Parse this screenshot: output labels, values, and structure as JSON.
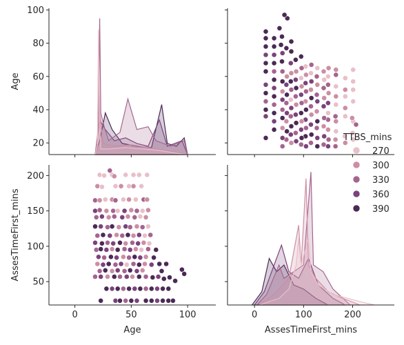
{
  "chart_data": {
    "type": "scatter",
    "kind": "pairplot",
    "variables": [
      "Age",
      "AssesTimeFirst_mins"
    ],
    "hue": {
      "name": "TTBS_mins",
      "levels": [
        "270",
        "300",
        "330",
        "360",
        "390"
      ],
      "colors": [
        "#e8c0c8",
        "#cc8ea4",
        "#a5648f",
        "#7a437b",
        "#4a2a55"
      ]
    },
    "axes": {
      "Age": {
        "ticks": [
          0,
          50,
          100
        ],
        "lim": [
          -23,
          125
        ],
        "label": "Age"
      },
      "Age_row": {
        "ticks": [
          20,
          40,
          60,
          80,
          100
        ],
        "lim": [
          13,
          101
        ],
        "label": "Age"
      },
      "AssesTimeFirst_mins": {
        "ticks": [
          50,
          100,
          150,
          200
        ],
        "lim": [
          17,
          215
        ],
        "label": "AssesTimeFirst_mins"
      },
      "AssesTimeFirst_mins_col": {
        "ticks": [
          0,
          100,
          200
        ],
        "lim": [
          -55,
          285
        ],
        "label": "AssesTimeFirst_mins"
      }
    },
    "kde_age": {
      "270": [
        [
          18,
          0
        ],
        [
          20,
          0.06
        ],
        [
          21,
          0.9
        ],
        [
          22,
          0.2
        ],
        [
          23,
          0.04
        ],
        [
          30,
          0.04
        ],
        [
          45,
          0.05
        ],
        [
          60,
          0.04
        ],
        [
          75,
          0.03
        ],
        [
          90,
          0.01
        ],
        [
          100,
          0
        ]
      ],
      "300": [
        [
          18,
          0
        ],
        [
          20,
          0.1
        ],
        [
          21,
          0.62
        ],
        [
          22,
          0.3
        ],
        [
          25,
          0.08
        ],
        [
          35,
          0.06
        ],
        [
          50,
          0.07
        ],
        [
          65,
          0.05
        ],
        [
          80,
          0.03
        ],
        [
          95,
          0.01
        ],
        [
          100,
          0
        ]
      ],
      "330": [
        [
          18,
          0
        ],
        [
          21,
          0.2
        ],
        [
          22,
          0.98
        ],
        [
          23,
          0.3
        ],
        [
          26,
          0.2
        ],
        [
          30,
          0.1
        ],
        [
          40,
          0.16
        ],
        [
          47,
          0.4
        ],
        [
          55,
          0.18
        ],
        [
          65,
          0.2
        ],
        [
          72,
          0.1
        ],
        [
          85,
          0.06
        ],
        [
          97,
          0.1
        ],
        [
          100,
          0
        ]
      ],
      "360": [
        [
          18,
          0
        ],
        [
          22,
          0.25
        ],
        [
          27,
          0.18
        ],
        [
          35,
          0.1
        ],
        [
          45,
          0.12
        ],
        [
          55,
          0.08
        ],
        [
          65,
          0.06
        ],
        [
          75,
          0.25
        ],
        [
          82,
          0.06
        ],
        [
          95,
          0.1
        ],
        [
          100,
          0
        ]
      ],
      "390": [
        [
          18,
          0
        ],
        [
          22,
          0.1
        ],
        [
          27,
          0.3
        ],
        [
          33,
          0.18
        ],
        [
          42,
          0.08
        ],
        [
          55,
          0.06
        ],
        [
          68,
          0.05
        ],
        [
          77,
          0.36
        ],
        [
          82,
          0.08
        ],
        [
          90,
          0.06
        ],
        [
          97,
          0.12
        ],
        [
          100,
          0
        ]
      ]
    },
    "kde_asses": {
      "270": [
        [
          10,
          0
        ],
        [
          50,
          0.05
        ],
        [
          70,
          0.12
        ],
        [
          85,
          0.3
        ],
        [
          90,
          0.5
        ],
        [
          95,
          0.3
        ],
        [
          110,
          0.5
        ],
        [
          115,
          0.25
        ],
        [
          130,
          0.15
        ],
        [
          160,
          0.08
        ],
        [
          190,
          0.05
        ],
        [
          220,
          0.02
        ],
        [
          245,
          0
        ]
      ],
      "300": [
        [
          10,
          0
        ],
        [
          40,
          0.08
        ],
        [
          70,
          0.2
        ],
        [
          90,
          0.6
        ],
        [
          95,
          0.3
        ],
        [
          105,
          0.95
        ],
        [
          110,
          0.3
        ],
        [
          125,
          0.2
        ],
        [
          150,
          0.1
        ],
        [
          180,
          0.05
        ],
        [
          215,
          0
        ]
      ],
      "330": [
        [
          5,
          0
        ],
        [
          25,
          0.08
        ],
        [
          50,
          0.3
        ],
        [
          60,
          0.2
        ],
        [
          80,
          0.25
        ],
        [
          100,
          0.3
        ],
        [
          115,
          1.0
        ],
        [
          120,
          0.3
        ],
        [
          140,
          0.25
        ],
        [
          160,
          0.12
        ],
        [
          195,
          0
        ]
      ],
      "360": [
        [
          0,
          0
        ],
        [
          20,
          0.1
        ],
        [
          40,
          0.3
        ],
        [
          55,
          0.45
        ],
        [
          70,
          0.25
        ],
        [
          90,
          0.2
        ],
        [
          110,
          0.35
        ],
        [
          130,
          0.15
        ],
        [
          160,
          0.05
        ],
        [
          185,
          0
        ]
      ],
      "390": [
        [
          -5,
          0
        ],
        [
          15,
          0.1
        ],
        [
          30,
          0.35
        ],
        [
          45,
          0.25
        ],
        [
          60,
          0.3
        ],
        [
          80,
          0.15
        ],
        [
          100,
          0.12
        ],
        [
          125,
          0.05
        ],
        [
          150,
          0
        ]
      ]
    },
    "points": [
      {
        "age": 22,
        "t": 201,
        "h": 0
      },
      {
        "age": 26,
        "t": 200,
        "h": 0
      },
      {
        "age": 33,
        "t": 201,
        "h": 0
      },
      {
        "age": 45,
        "t": 201,
        "h": 0
      },
      {
        "age": 52,
        "t": 201,
        "h": 0
      },
      {
        "age": 57,
        "t": 201,
        "h": 0
      },
      {
        "age": 64,
        "t": 201,
        "h": 0
      },
      {
        "age": 20,
        "t": 185,
        "h": 1
      },
      {
        "age": 24,
        "t": 184,
        "h": 0
      },
      {
        "age": 36,
        "t": 185,
        "h": 0
      },
      {
        "age": 41,
        "t": 185,
        "h": 1
      },
      {
        "age": 48,
        "t": 185,
        "h": 0
      },
      {
        "age": 52,
        "t": 185,
        "h": 1
      },
      {
        "age": 59,
        "t": 185,
        "h": 0
      },
      {
        "age": 31,
        "t": 207,
        "h": 2
      },
      {
        "age": 35,
        "t": 199,
        "h": 1
      },
      {
        "age": 18,
        "t": 165,
        "h": 2
      },
      {
        "age": 22,
        "t": 165,
        "h": 1
      },
      {
        "age": 27,
        "t": 166,
        "h": 0
      },
      {
        "age": 33,
        "t": 166,
        "h": 1
      },
      {
        "age": 36,
        "t": 165,
        "h": 2
      },
      {
        "age": 43,
        "t": 166,
        "h": 0
      },
      {
        "age": 48,
        "t": 166,
        "h": 1
      },
      {
        "age": 54,
        "t": 166,
        "h": 0
      },
      {
        "age": 61,
        "t": 166,
        "h": 2
      },
      {
        "age": 64,
        "t": 166,
        "h": 1
      },
      {
        "age": 18,
        "t": 150,
        "h": 3
      },
      {
        "age": 22,
        "t": 151,
        "h": 2
      },
      {
        "age": 28,
        "t": 150,
        "h": 1
      },
      {
        "age": 34,
        "t": 150,
        "h": 2
      },
      {
        "age": 38,
        "t": 150,
        "h": 0
      },
      {
        "age": 44,
        "t": 150,
        "h": 3
      },
      {
        "age": 50,
        "t": 151,
        "h": 1
      },
      {
        "age": 55,
        "t": 150,
        "h": 2
      },
      {
        "age": 60,
        "t": 150,
        "h": 0
      },
      {
        "age": 65,
        "t": 151,
        "h": 1
      },
      {
        "age": 19,
        "t": 141,
        "h": 2
      },
      {
        "age": 24,
        "t": 142,
        "h": 3
      },
      {
        "age": 30,
        "t": 141,
        "h": 1
      },
      {
        "age": 35,
        "t": 142,
        "h": 2
      },
      {
        "age": 42,
        "t": 141,
        "h": 3
      },
      {
        "age": 47,
        "t": 142,
        "h": 1
      },
      {
        "age": 53,
        "t": 141,
        "h": 2
      },
      {
        "age": 58,
        "t": 142,
        "h": 0
      },
      {
        "age": 63,
        "t": 141,
        "h": 1
      },
      {
        "age": 18,
        "t": 128,
        "h": 4
      },
      {
        "age": 23,
        "t": 128,
        "h": 3
      },
      {
        "age": 29,
        "t": 127,
        "h": 2
      },
      {
        "age": 33,
        "t": 128,
        "h": 4
      },
      {
        "age": 39,
        "t": 127,
        "h": 1
      },
      {
        "age": 45,
        "t": 128,
        "h": 3
      },
      {
        "age": 49,
        "t": 127,
        "h": 2
      },
      {
        "age": 55,
        "t": 128,
        "h": 1
      },
      {
        "age": 60,
        "t": 127,
        "h": 2
      },
      {
        "age": 65,
        "t": 128,
        "h": 0
      },
      {
        "age": 20,
        "t": 115,
        "h": 2
      },
      {
        "age": 25,
        "t": 116,
        "h": 4
      },
      {
        "age": 31,
        "t": 115,
        "h": 3
      },
      {
        "age": 37,
        "t": 116,
        "h": 1
      },
      {
        "age": 42,
        "t": 115,
        "h": 2
      },
      {
        "age": 47,
        "t": 116,
        "h": 4
      },
      {
        "age": 52,
        "t": 115,
        "h": 1
      },
      {
        "age": 57,
        "t": 116,
        "h": 3
      },
      {
        "age": 62,
        "t": 115,
        "h": 0
      },
      {
        "age": 67,
        "t": 116,
        "h": 2
      },
      {
        "age": 18,
        "t": 105,
        "h": 3
      },
      {
        "age": 24,
        "t": 104,
        "h": 4
      },
      {
        "age": 29,
        "t": 105,
        "h": 2
      },
      {
        "age": 34,
        "t": 104,
        "h": 3
      },
      {
        "age": 40,
        "t": 105,
        "h": 4
      },
      {
        "age": 45,
        "t": 104,
        "h": 1
      },
      {
        "age": 51,
        "t": 105,
        "h": 2
      },
      {
        "age": 56,
        "t": 104,
        "h": 3
      },
      {
        "age": 61,
        "t": 105,
        "h": 1
      },
      {
        "age": 66,
        "t": 104,
        "h": 0
      },
      {
        "age": 19,
        "t": 95,
        "h": 2
      },
      {
        "age": 23,
        "t": 96,
        "h": 4
      },
      {
        "age": 28,
        "t": 95,
        "h": 3
      },
      {
        "age": 33,
        "t": 96,
        "h": 1
      },
      {
        "age": 38,
        "t": 95,
        "h": 4
      },
      {
        "age": 44,
        "t": 96,
        "h": 2
      },
      {
        "age": 49,
        "t": 95,
        "h": 3
      },
      {
        "age": 54,
        "t": 96,
        "h": 1
      },
      {
        "age": 59,
        "t": 95,
        "h": 0
      },
      {
        "age": 65,
        "t": 96,
        "h": 2
      },
      {
        "age": 72,
        "t": 95,
        "h": 4
      },
      {
        "age": 21,
        "t": 85,
        "h": 3
      },
      {
        "age": 26,
        "t": 84,
        "h": 2
      },
      {
        "age": 32,
        "t": 85,
        "h": 4
      },
      {
        "age": 37,
        "t": 84,
        "h": 3
      },
      {
        "age": 43,
        "t": 85,
        "h": 1
      },
      {
        "age": 48,
        "t": 84,
        "h": 2
      },
      {
        "age": 53,
        "t": 85,
        "h": 4
      },
      {
        "age": 58,
        "t": 84,
        "h": 3
      },
      {
        "age": 63,
        "t": 85,
        "h": 1
      },
      {
        "age": 70,
        "t": 84,
        "h": 4
      },
      {
        "age": 20,
        "t": 75,
        "h": 1
      },
      {
        "age": 25,
        "t": 74,
        "h": 3
      },
      {
        "age": 30,
        "t": 75,
        "h": 4
      },
      {
        "age": 36,
        "t": 74,
        "h": 2
      },
      {
        "age": 41,
        "t": 75,
        "h": 3
      },
      {
        "age": 46,
        "t": 74,
        "h": 0
      },
      {
        "age": 52,
        "t": 75,
        "h": 2
      },
      {
        "age": 57,
        "t": 74,
        "h": 4
      },
      {
        "age": 62,
        "t": 75,
        "h": 1
      },
      {
        "age": 68,
        "t": 74,
        "h": 3
      },
      {
        "age": 75,
        "t": 75,
        "h": 4
      },
      {
        "age": 81,
        "t": 75,
        "h": 4
      },
      {
        "age": 22,
        "t": 65,
        "h": 2
      },
      {
        "age": 27,
        "t": 66,
        "h": 4
      },
      {
        "age": 33,
        "t": 65,
        "h": 1
      },
      {
        "age": 38,
        "t": 66,
        "h": 3
      },
      {
        "age": 44,
        "t": 65,
        "h": 2
      },
      {
        "age": 49,
        "t": 66,
        "h": 4
      },
      {
        "age": 55,
        "t": 65,
        "h": 3
      },
      {
        "age": 60,
        "t": 66,
        "h": 1
      },
      {
        "age": 77,
        "t": 65,
        "h": 4
      },
      {
        "age": 95,
        "t": 67,
        "h": 4
      },
      {
        "age": 97,
        "t": 61,
        "h": 4
      },
      {
        "age": 18,
        "t": 57,
        "h": 2
      },
      {
        "age": 23,
        "t": 57,
        "h": 3
      },
      {
        "age": 29,
        "t": 57,
        "h": 1
      },
      {
        "age": 35,
        "t": 57,
        "h": 4
      },
      {
        "age": 40,
        "t": 57,
        "h": 2
      },
      {
        "age": 46,
        "t": 57,
        "h": 3
      },
      {
        "age": 51,
        "t": 57,
        "h": 1
      },
      {
        "age": 57,
        "t": 57,
        "h": 4
      },
      {
        "age": 63,
        "t": 57,
        "h": 2
      },
      {
        "age": 69,
        "t": 56,
        "h": 4
      },
      {
        "age": 74,
        "t": 57,
        "h": 3
      },
      {
        "age": 79,
        "t": 54,
        "h": 4
      },
      {
        "age": 84,
        "t": 56,
        "h": 4
      },
      {
        "age": 89,
        "t": 51,
        "h": 4
      },
      {
        "age": 28,
        "t": 40,
        "h": 4
      },
      {
        "age": 33,
        "t": 40,
        "h": 3
      },
      {
        "age": 38,
        "t": 40,
        "h": 4
      },
      {
        "age": 43,
        "t": 40,
        "h": 2
      },
      {
        "age": 48,
        "t": 40,
        "h": 4
      },
      {
        "age": 53,
        "t": 40,
        "h": 3
      },
      {
        "age": 58,
        "t": 40,
        "h": 4
      },
      {
        "age": 63,
        "t": 40,
        "h": 2
      },
      {
        "age": 68,
        "t": 40,
        "h": 4
      },
      {
        "age": 73,
        "t": 40,
        "h": 3
      },
      {
        "age": 78,
        "t": 40,
        "h": 4
      },
      {
        "age": 83,
        "t": 40,
        "h": 4
      },
      {
        "age": 23,
        "t": 23,
        "h": 4
      },
      {
        "age": 36,
        "t": 23,
        "h": 3
      },
      {
        "age": 40,
        "t": 23,
        "h": 4
      },
      {
        "age": 45,
        "t": 23,
        "h": 2
      },
      {
        "age": 50,
        "t": 23,
        "h": 4
      },
      {
        "age": 55,
        "t": 23,
        "h": 3
      },
      {
        "age": 63,
        "t": 23,
        "h": 4
      },
      {
        "age": 68,
        "t": 23,
        "h": 4
      },
      {
        "age": 73,
        "t": 23,
        "h": 3
      },
      {
        "age": 78,
        "t": 23,
        "h": 4
      },
      {
        "age": 83,
        "t": 23,
        "h": 4
      },
      {
        "age": 87,
        "t": 23,
        "h": 4
      }
    ]
  }
}
